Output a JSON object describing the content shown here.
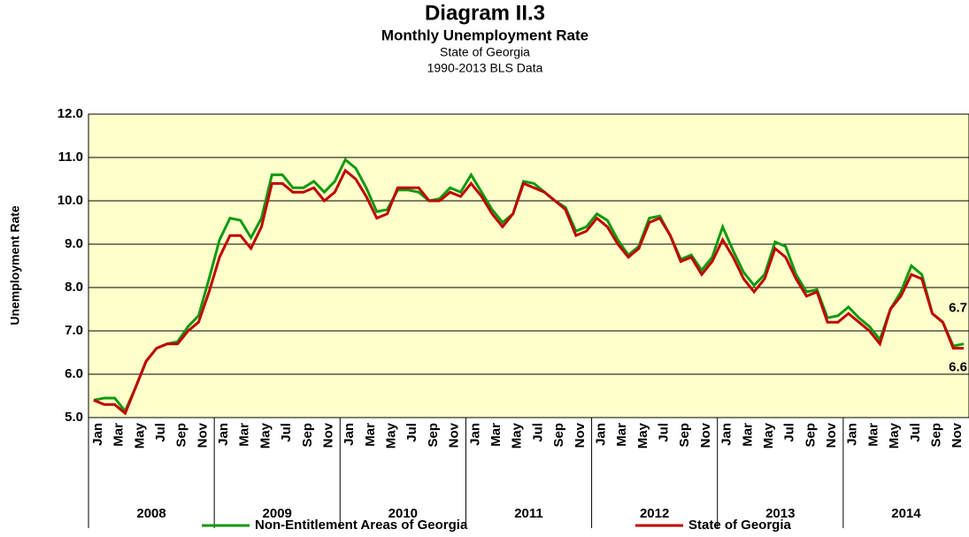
{
  "chart_data": {
    "type": "line",
    "title": "Diagram II.3",
    "subtitle": "Monthly Unemployment Rate",
    "subtitle2": "State of Georgia",
    "subtitle3": "1990-2013 BLS Data",
    "y_label": "Unemployment Rate",
    "categories": [
      "Jan",
      null,
      "Mar",
      null,
      "May",
      null,
      "Jul",
      null,
      "Sep",
      null,
      "Nov",
      null,
      "Jan",
      null,
      "Mar",
      null,
      "May",
      null,
      "Jul",
      null,
      "Sep",
      null,
      "Nov",
      null,
      "Jan",
      null,
      "Mar",
      null,
      "May",
      null,
      "Jul",
      null,
      "Sep",
      null,
      "Nov",
      null,
      "Jan",
      null,
      "Mar",
      null,
      "May",
      null,
      "Jul",
      null,
      "Sep",
      null,
      "Nov",
      null,
      "Jan",
      null,
      "Mar",
      null,
      "May",
      null,
      "Jul",
      null,
      "Sep",
      null,
      "Nov",
      null,
      "Jan",
      null,
      "Mar",
      null,
      "May",
      null,
      "Jul",
      null,
      "Sep",
      null,
      "Nov",
      null,
      "Jan",
      null,
      "Mar",
      null,
      "May",
      null,
      "Jul",
      null,
      "Sep",
      null,
      "Nov",
      null
    ],
    "year_groups": [
      "2008",
      "2009",
      "2010",
      "2011",
      "2012",
      "2013",
      "2014"
    ],
    "series": [
      {
        "name": "Non-Entitlement Areas of Georgia",
        "color": "#109a10",
        "values": [
          5.4,
          5.45,
          5.45,
          5.15,
          5.7,
          6.3,
          6.6,
          6.7,
          6.75,
          7.1,
          7.35,
          8.2,
          9.1,
          9.6,
          9.55,
          9.15,
          9.6,
          10.6,
          10.6,
          10.3,
          10.3,
          10.45,
          10.2,
          10.45,
          10.95,
          10.75,
          10.3,
          9.75,
          9.8,
          10.25,
          10.25,
          10.2,
          10.0,
          10.05,
          10.3,
          10.2,
          10.6,
          10.2,
          9.8,
          9.5,
          9.7,
          10.45,
          10.4,
          10.2,
          10.0,
          9.85,
          9.3,
          9.4,
          9.7,
          9.55,
          9.1,
          8.75,
          8.95,
          9.6,
          9.65,
          9.2,
          8.65,
          8.75,
          8.4,
          8.7,
          9.4,
          8.85,
          8.35,
          8.05,
          8.3,
          9.05,
          8.95,
          8.3,
          7.9,
          7.95,
          7.3,
          7.35,
          7.55,
          7.3,
          7.1,
          6.8,
          7.5,
          7.9,
          8.5,
          8.3,
          7.4,
          7.2,
          6.65,
          6.7
        ]
      },
      {
        "name": "State of Georgia",
        "color": "#c00000",
        "values": [
          5.4,
          5.3,
          5.3,
          5.1,
          5.7,
          6.3,
          6.6,
          6.7,
          6.7,
          7.0,
          7.2,
          7.9,
          8.7,
          9.2,
          9.2,
          8.9,
          9.4,
          10.4,
          10.4,
          10.2,
          10.2,
          10.3,
          10.0,
          10.2,
          10.7,
          10.5,
          10.1,
          9.6,
          9.7,
          10.3,
          10.3,
          10.3,
          10.0,
          10.0,
          10.2,
          10.1,
          10.4,
          10.1,
          9.7,
          9.4,
          9.7,
          10.4,
          10.3,
          10.2,
          10.0,
          9.8,
          9.2,
          9.3,
          9.6,
          9.4,
          9.0,
          8.7,
          8.9,
          9.5,
          9.6,
          9.2,
          8.6,
          8.7,
          8.3,
          8.6,
          9.1,
          8.7,
          8.2,
          7.9,
          8.2,
          8.9,
          8.7,
          8.2,
          7.8,
          7.9,
          7.2,
          7.2,
          7.4,
          7.2,
          7.0,
          6.7,
          7.5,
          7.8,
          8.3,
          8.2,
          7.4,
          7.2,
          6.6,
          6.6
        ]
      }
    ],
    "ylim": [
      5,
      12
    ],
    "yticks": [
      {
        "value": 5,
        "label": "5.0"
      },
      {
        "value": 6,
        "label": "6.0"
      },
      {
        "value": 7,
        "label": "7.0"
      },
      {
        "value": 8,
        "label": "8.0"
      },
      {
        "value": 9,
        "label": "9.0"
      },
      {
        "value": 10,
        "label": "10.0"
      },
      {
        "value": 11,
        "label": "11.0"
      },
      {
        "value": 12,
        "label": "12.0"
      }
    ],
    "grid": true,
    "plot_background": "#ffffcc",
    "legend": "bottom"
  }
}
